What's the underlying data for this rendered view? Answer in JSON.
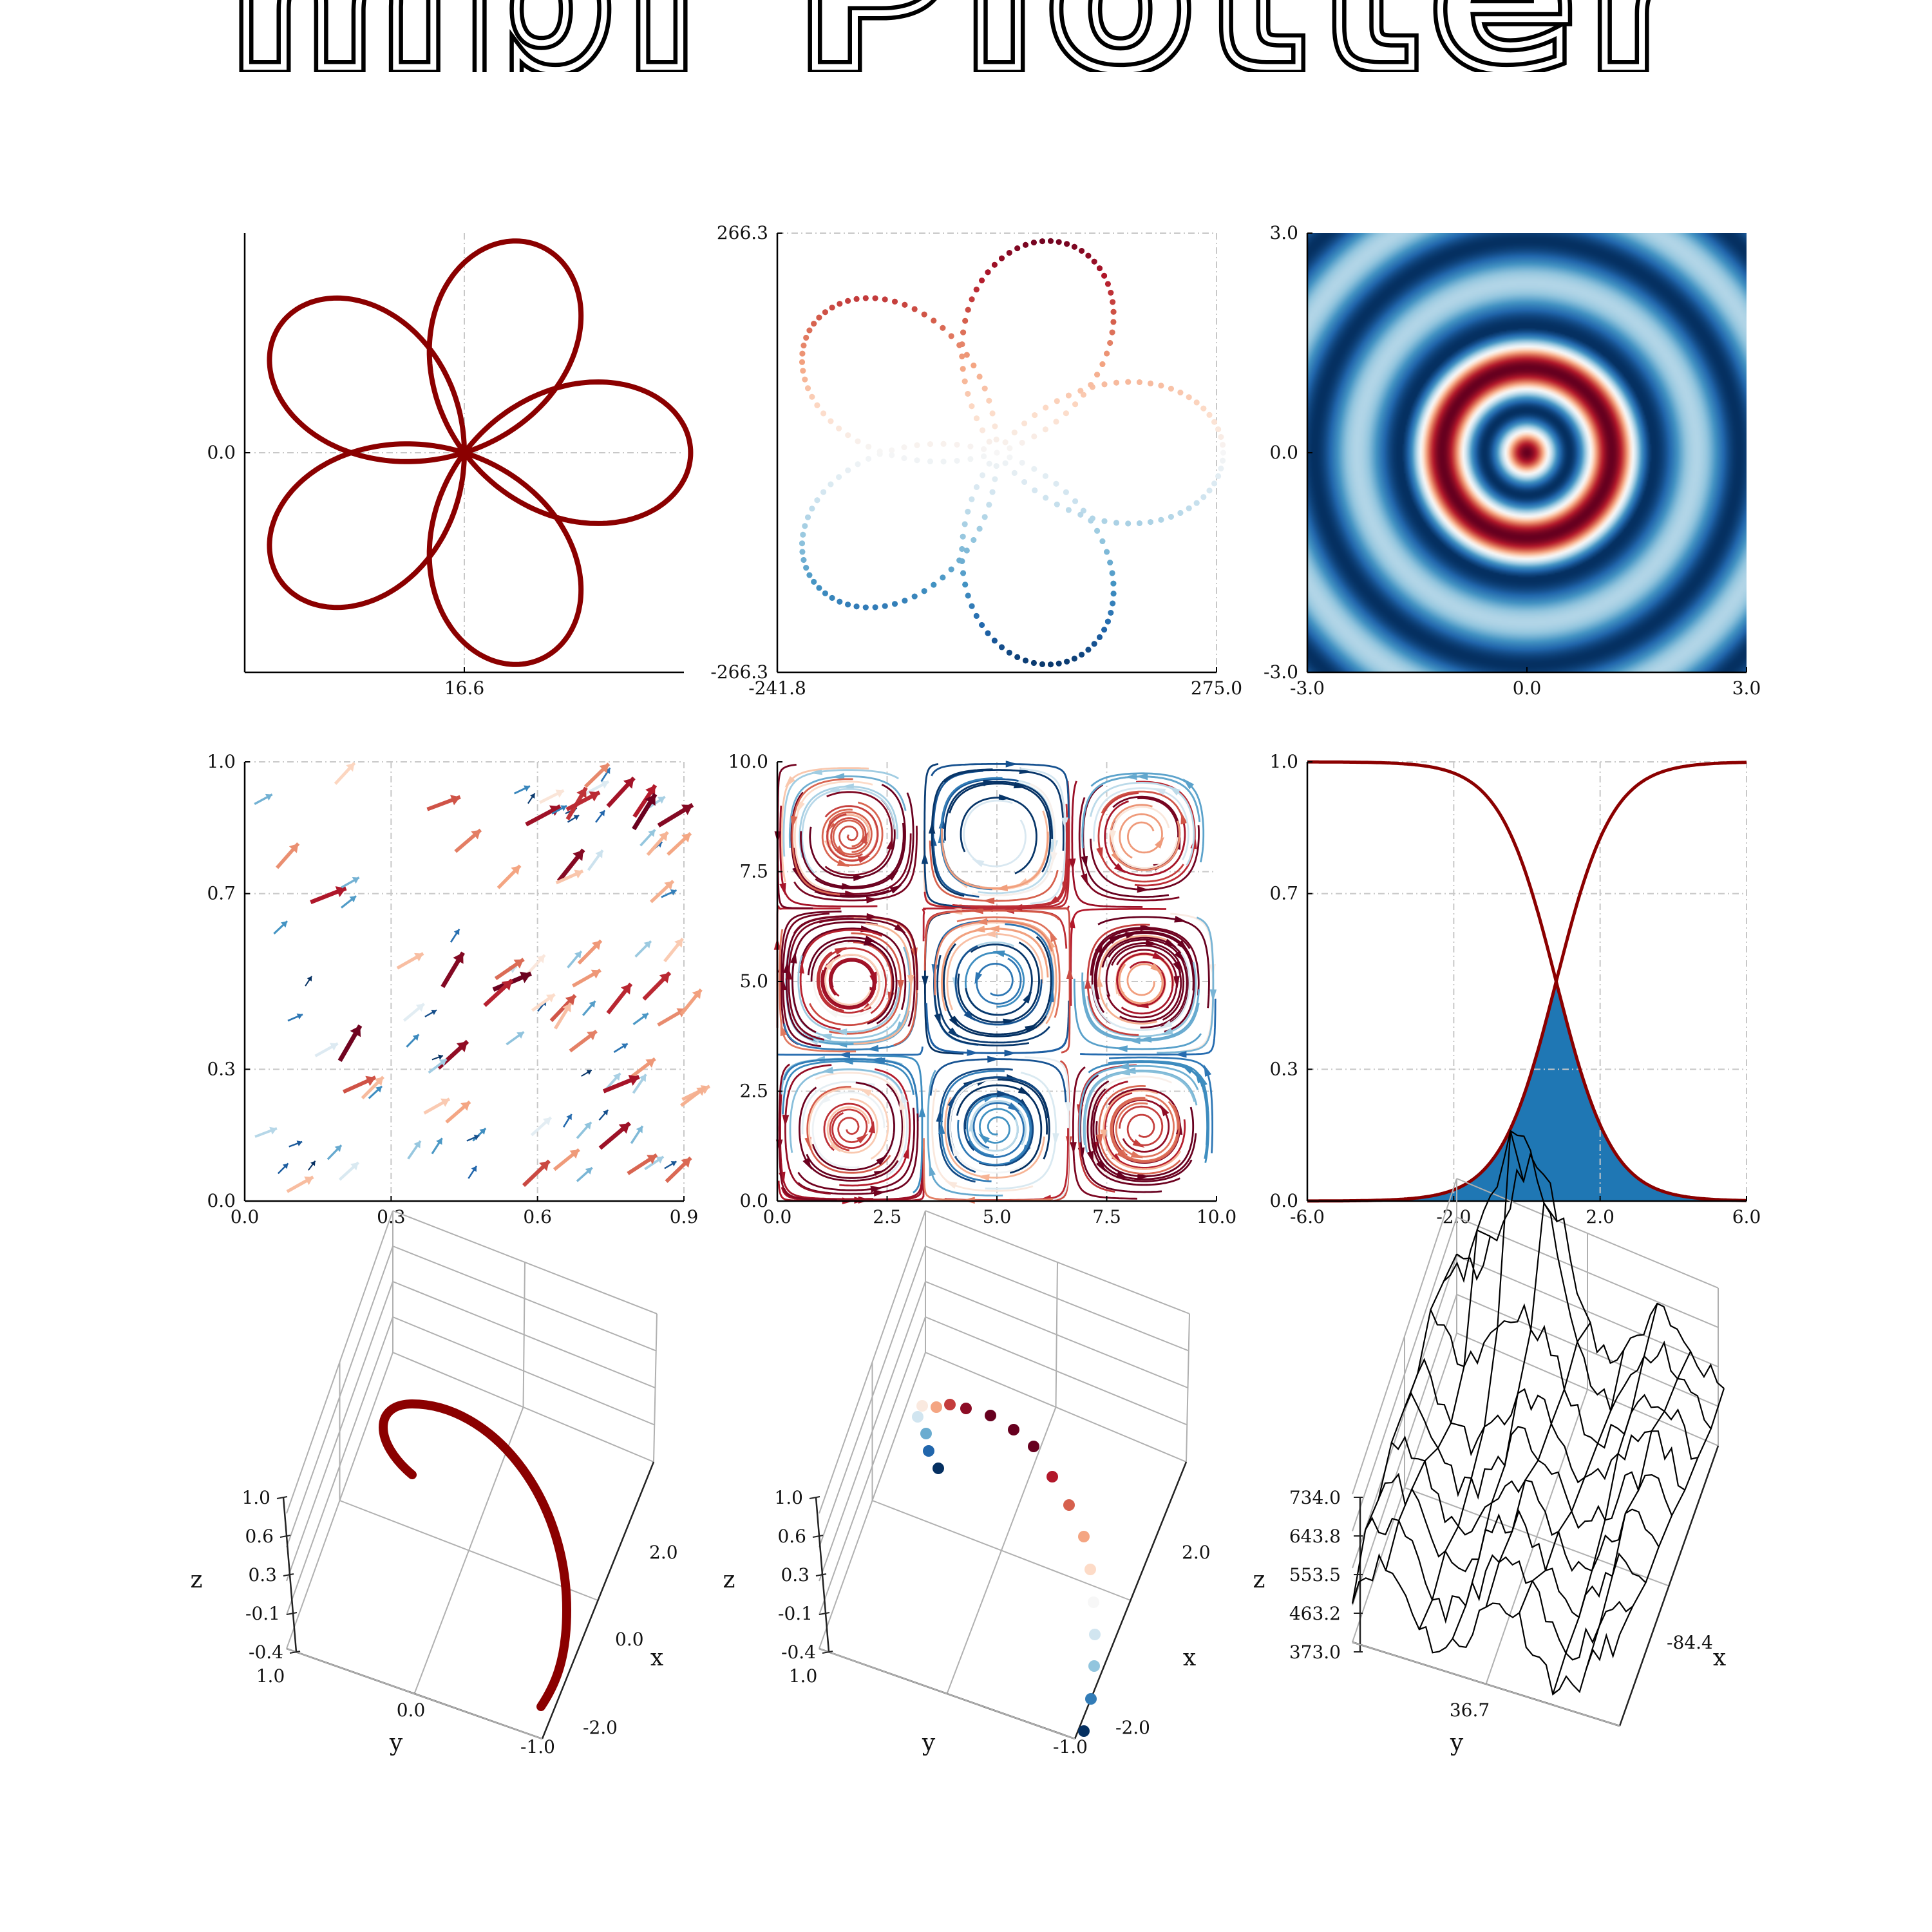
{
  "title": "mpl Plotter",
  "colors": {
    "dark_red": "#8b0000",
    "fill_blue": "#1f77b4",
    "rdbu": [
      "#67001f",
      "#b2182b",
      "#d6604d",
      "#f4a582",
      "#fddbc7",
      "#f7f7f7",
      "#d1e5f0",
      "#92c5de",
      "#4393c3",
      "#2166ac",
      "#053061"
    ]
  },
  "chart_data": [
    {
      "id": "rose-line",
      "type": "line",
      "description_curve": "r = 266.3*cos(5t/3)",
      "xticks": [
        "16.6"
      ],
      "yticks": [
        "0.0"
      ],
      "xlim": [
        -241.8,
        275.0
      ],
      "ylim": [
        -266.3,
        266.3
      ],
      "grid": true
    },
    {
      "id": "rose-scatter",
      "type": "scatter",
      "xticks": [
        "-241.8",
        "275.0"
      ],
      "yticks": [
        "-266.3",
        "266.3"
      ],
      "xlim": [
        -241.8,
        275.0
      ],
      "ylim": [
        -266.3,
        266.3
      ],
      "grid": true
    },
    {
      "id": "ripple-heatmap",
      "type": "heatmap",
      "xticks": [
        "-3.0",
        "0.0",
        "3.0"
      ],
      "yticks": [
        "-3.0",
        "0.0",
        "3.0"
      ],
      "xlim": [
        -3.0,
        3.0
      ],
      "ylim": [
        -3.0,
        3.0
      ]
    },
    {
      "id": "quiver",
      "type": "scatter",
      "xticks": [
        "0.0",
        "0.3",
        "0.6",
        "0.9"
      ],
      "yticks": [
        "0.0",
        "0.3",
        "0.7",
        "1.0"
      ],
      "xlim": [
        0.0,
        0.9
      ],
      "ylim": [
        0.0,
        1.0
      ],
      "grid": true
    },
    {
      "id": "streamplot",
      "type": "line",
      "xticks": [
        "0.0",
        "2.5",
        "5.0",
        "7.5",
        "10.0"
      ],
      "yticks": [
        "0.0",
        "2.5",
        "5.0",
        "7.5",
        "10.0"
      ],
      "xlim": [
        0.0,
        10.0
      ],
      "ylim": [
        0.0,
        10.0
      ],
      "grid": true
    },
    {
      "id": "sigmoid-fill",
      "type": "area",
      "xticks": [
        "-6.0",
        "-2.0",
        "2.0",
        "6.0"
      ],
      "yticks": [
        "0.0",
        "0.3",
        "0.7",
        "1.0"
      ],
      "xlim": [
        -6.0,
        6.0
      ],
      "ylim": [
        0.0,
        1.0
      ],
      "grid": true
    },
    {
      "id": "spiral-3d",
      "type": "line",
      "xticks": [
        "-2.0",
        "0.0",
        "2.0"
      ],
      "yticks": [
        "1.0",
        "0.0",
        "-1.0"
      ],
      "zticks": [
        "-0.4",
        "-0.1",
        "0.3",
        "0.6",
        "1.0"
      ],
      "xlabel": "x",
      "ylabel": "y",
      "zlabel": "z"
    },
    {
      "id": "scatter-3d",
      "type": "scatter",
      "xticks": [
        "-2.0",
        "2.0"
      ],
      "yticks": [
        "1.0",
        "-1.0"
      ],
      "zticks": [
        "-0.4",
        "-0.1",
        "0.3",
        "0.6",
        "1.0"
      ],
      "xlabel": "x",
      "ylabel": "y",
      "zlabel": "z"
    },
    {
      "id": "wireframe-3d",
      "type": "line",
      "xticks": [
        "-84.4"
      ],
      "yticks": [
        "36.7"
      ],
      "zticks": [
        "373.0",
        "463.2",
        "553.5",
        "643.8",
        "734.0"
      ],
      "xlabel": "x",
      "ylabel": "y",
      "zlabel": "z"
    }
  ]
}
